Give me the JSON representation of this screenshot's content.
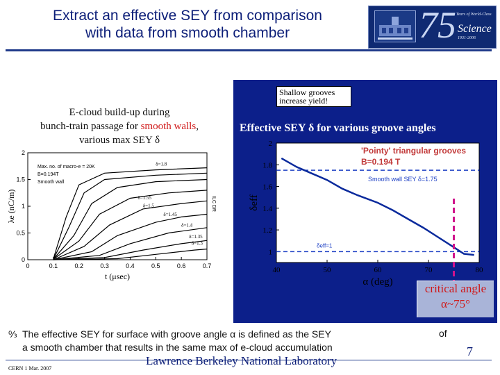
{
  "title": {
    "line1": "Extract an effective SEY from comparison",
    "line2": "with data from smooth chamber"
  },
  "logo": {
    "number": "75",
    "small_text": "Years of World-Class",
    "word": "Science",
    "years": "1931-2006"
  },
  "left_panel": {
    "caption_line1": "E-cloud build-up during",
    "caption_line2_pre": "bunch-train passage for ",
    "caption_line2_red": "smooth walls",
    "caption_line2_post": ",",
    "caption_line3": "various max SEY δ",
    "legend_lines": [
      "Max. no. of macro-e = 20K",
      "B=0.194T",
      "Smooth wall"
    ],
    "delta_labels": [
      "δ=1.8",
      "δ=1.55",
      "δ=1.5",
      "δ=1.45",
      "δ=1.4",
      "δ=1.35",
      "δ=1.3"
    ],
    "right_side_label": "ILC DR"
  },
  "right_panel": {
    "callout_line1": "Shallow grooves",
    "callout_line2": "increase yield!",
    "caption": "Effective SEY δ for various groove angles",
    "legend_line1": "'Pointy' triangular grooves",
    "legend_line2": "B=0.194 T",
    "smooth_label": "Smooth wall SEY δ=1.75",
    "unity_label": "δeff=1",
    "critical_line1": "critical angle",
    "critical_line2": "α~75°"
  },
  "chart_data": [
    {
      "type": "line",
      "title": "",
      "xlabel": "t (μsec)",
      "ylabel": "λe (nC/m)",
      "xlim": [
        0,
        0.7
      ],
      "ylim": [
        0,
        2
      ],
      "x_ticks": [
        "0",
        "0.1",
        "0.2",
        "0.3",
        "0.4",
        "0.5",
        "0.6",
        "0.7"
      ],
      "y_ticks": [
        "0",
        "0.5",
        "1",
        "1.5",
        "2"
      ],
      "series": [
        {
          "name": "δ=1.8",
          "values": [
            [
              0.1,
              0.02
            ],
            [
              0.15,
              0.8
            ],
            [
              0.2,
              1.4
            ],
            [
              0.3,
              1.62
            ],
            [
              0.5,
              1.68
            ],
            [
              0.7,
              1.72
            ]
          ]
        },
        {
          "name": "",
          "values": [
            [
              0.1,
              0.01
            ],
            [
              0.16,
              0.6
            ],
            [
              0.22,
              1.25
            ],
            [
              0.3,
              1.5
            ],
            [
              0.5,
              1.58
            ],
            [
              0.7,
              1.62
            ]
          ]
        },
        {
          "name": "",
          "values": [
            [
              0.1,
              0.01
            ],
            [
              0.18,
              0.45
            ],
            [
              0.25,
              1.05
            ],
            [
              0.35,
              1.35
            ],
            [
              0.5,
              1.46
            ],
            [
              0.7,
              1.5
            ]
          ]
        },
        {
          "name": "δ=1.55",
          "values": [
            [
              0.1,
              0.01
            ],
            [
              0.2,
              0.35
            ],
            [
              0.28,
              0.85
            ],
            [
              0.4,
              1.15
            ],
            [
              0.55,
              1.25
            ],
            [
              0.7,
              1.3
            ]
          ]
        },
        {
          "name": "δ=1.5",
          "values": [
            [
              0.1,
              0.0
            ],
            [
              0.22,
              0.25
            ],
            [
              0.32,
              0.65
            ],
            [
              0.45,
              0.95
            ],
            [
              0.6,
              1.05
            ],
            [
              0.7,
              1.1
            ]
          ]
        },
        {
          "name": "δ=1.45",
          "values": [
            [
              0.1,
              0.0
            ],
            [
              0.25,
              0.15
            ],
            [
              0.35,
              0.45
            ],
            [
              0.5,
              0.7
            ],
            [
              0.6,
              0.8
            ],
            [
              0.7,
              0.85
            ]
          ]
        },
        {
          "name": "δ=1.4",
          "values": [
            [
              0.1,
              0.0
            ],
            [
              0.28,
              0.08
            ],
            [
              0.4,
              0.3
            ],
            [
              0.55,
              0.5
            ],
            [
              0.7,
              0.6
            ]
          ]
        },
        {
          "name": "δ=1.35",
          "values": [
            [
              0.1,
              0.0
            ],
            [
              0.3,
              0.04
            ],
            [
              0.45,
              0.18
            ],
            [
              0.6,
              0.3
            ],
            [
              0.7,
              0.36
            ]
          ]
        },
        {
          "name": "δ=1.3",
          "values": [
            [
              0.1,
              0.0
            ],
            [
              0.35,
              0.02
            ],
            [
              0.5,
              0.1
            ],
            [
              0.65,
              0.18
            ],
            [
              0.7,
              0.2
            ]
          ]
        }
      ]
    },
    {
      "type": "line",
      "title": "",
      "xlabel": "α (deg)",
      "ylabel": "δeff",
      "xlim": [
        40,
        80
      ],
      "ylim": [
        0.9,
        2.0
      ],
      "x_ticks": [
        "40",
        "50",
        "60",
        "70",
        "80"
      ],
      "y_ticks": [
        "1",
        "1.2",
        "1.4",
        "1.6",
        "1.8",
        "2"
      ],
      "series": [
        {
          "name": "'Pointy' triangular grooves",
          "values": [
            [
              41,
              1.86
            ],
            [
              44,
              1.78
            ],
            [
              47,
              1.72
            ],
            [
              50,
              1.66
            ],
            [
              53,
              1.58
            ],
            [
              56,
              1.52
            ],
            [
              60,
              1.45
            ],
            [
              63,
              1.38
            ],
            [
              66,
              1.3
            ],
            [
              69,
              1.22
            ],
            [
              72,
              1.13
            ],
            [
              75,
              1.04
            ],
            [
              77,
              0.98
            ],
            [
              79,
              0.97
            ]
          ]
        }
      ],
      "reference_lines": [
        {
          "label": "Smooth wall SEY δ=1.75",
          "y": 1.75
        },
        {
          "label": "δeff=1",
          "y": 1.0
        }
      ],
      "critical_x": 75
    }
  ],
  "bullet": {
    "text_line1": "The effective SEY for surface with groove angle α is defined as the SEY",
    "text_line2": "a smooth chamber that results in the same max of e-cloud accumulation",
    "of_word": "of"
  },
  "footer": {
    "left": "CERN 1 Mar. 2007",
    "lab": "Lawrence Berkeley National Laboratory",
    "page": "7"
  }
}
